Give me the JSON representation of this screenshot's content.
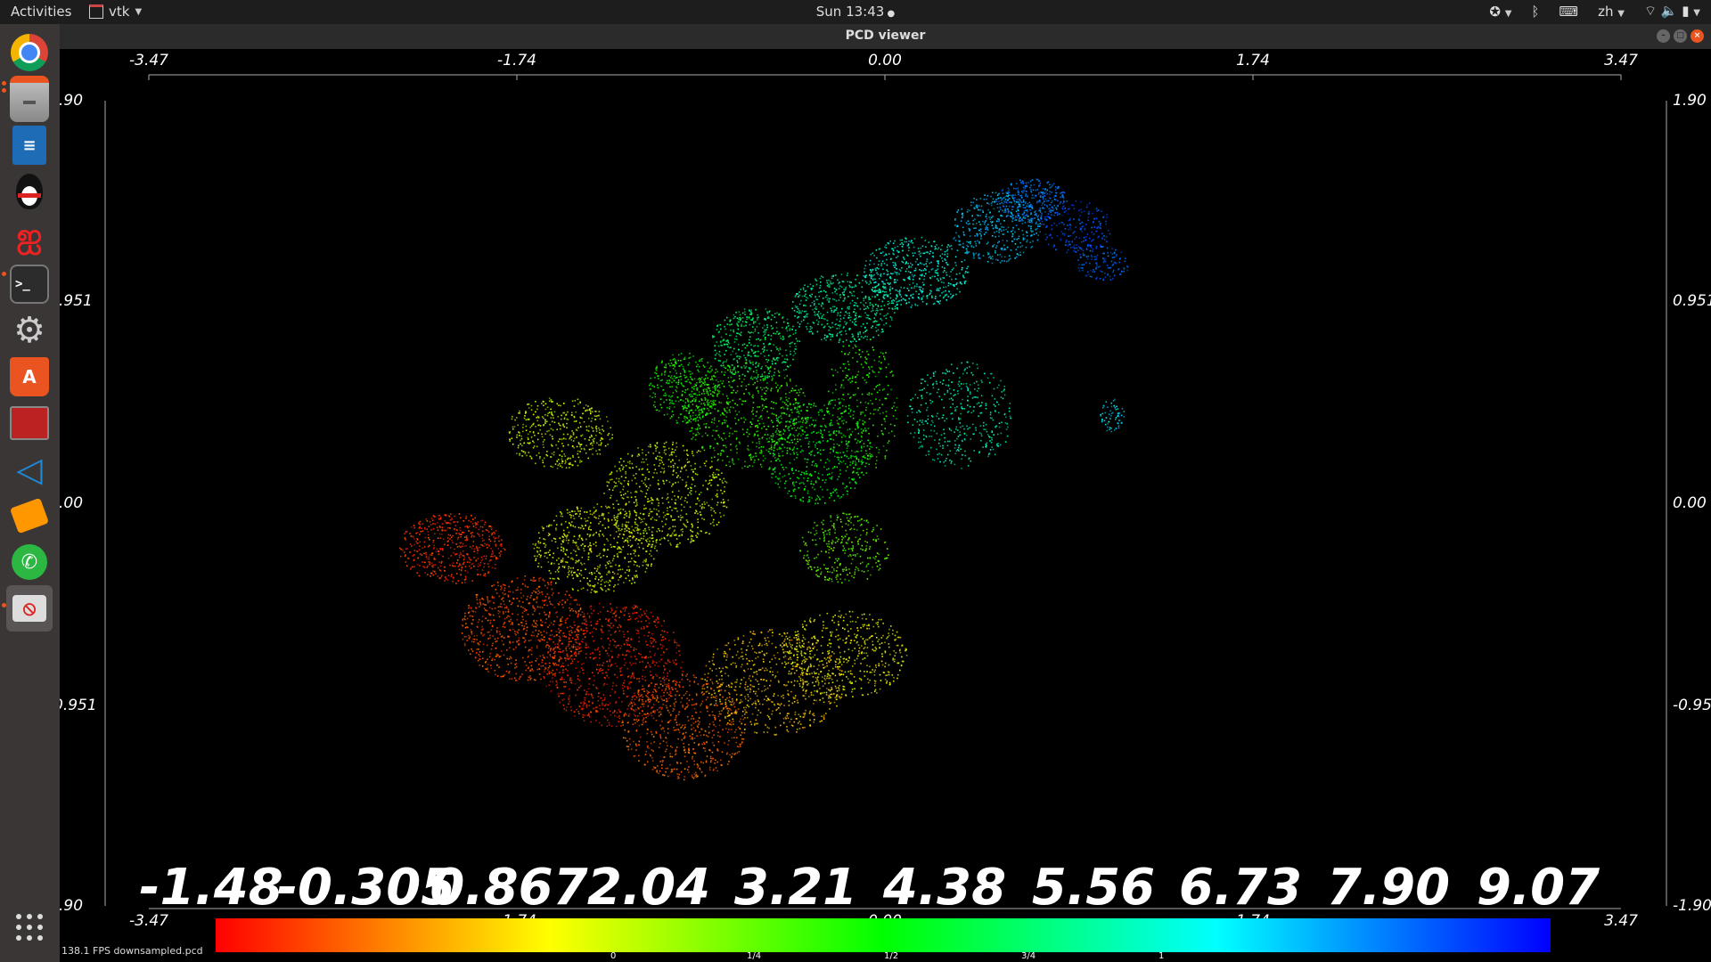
{
  "topbar": {
    "activities": "Activities",
    "app_name": "vtk",
    "clock": "Sun 13:43",
    "language": "zh"
  },
  "dock": {
    "items": [
      {
        "name": "chrome",
        "label": ""
      },
      {
        "name": "files",
        "label": ""
      },
      {
        "name": "writer",
        "label": ""
      },
      {
        "name": "qq",
        "label": ""
      },
      {
        "name": "netease",
        "label": ""
      },
      {
        "name": "terminal",
        "label": ">_"
      },
      {
        "name": "settings",
        "label": ""
      },
      {
        "name": "software",
        "label": "A"
      },
      {
        "name": "remmina",
        "label": ""
      },
      {
        "name": "vscode",
        "label": ""
      },
      {
        "name": "sublime",
        "label": ""
      },
      {
        "name": "whatsapp",
        "label": ""
      },
      {
        "name": "pcd",
        "label": ""
      }
    ]
  },
  "window": {
    "title": "PCD viewer",
    "status": "downsampled.pcd",
    "fps": "138.1 FPS"
  },
  "axes": {
    "top_ticks": [
      "-3.47",
      "-1.74",
      "0.00",
      "1.74",
      "3.47"
    ],
    "bottom_ticks": [
      "-3.47",
      "-1.74",
      "0.00",
      "1.74",
      "3.47"
    ],
    "left_ticks": [
      ".90",
      ".951",
      ".00",
      "0.951",
      ".90"
    ],
    "right_ticks": [
      "1.90",
      "0.951",
      "0.00",
      "-0.95",
      "-1.90"
    ]
  },
  "scale": {
    "values": [
      "-1.48",
      "-0.305",
      "0.867",
      "2.04",
      "3.21",
      "4.38",
      "5.56",
      "6.73",
      "7.90",
      "9.07"
    ],
    "fractions": [
      "0",
      "1/4",
      "1/2",
      "3/4",
      "1"
    ]
  },
  "colors": {
    "min": "#ff0000",
    "q1": "#ffff00",
    "mid": "#00ff00",
    "q3": "#00ffff",
    "max": "#0000ff"
  }
}
